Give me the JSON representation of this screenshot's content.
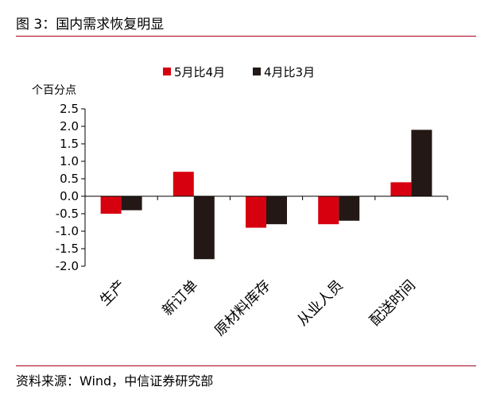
{
  "figure": {
    "title": "图 3：国内需求恢复明显",
    "source": "资料来源：Wind，中信证券研究部"
  },
  "colors": {
    "rule": "#a8001a",
    "series_1": "#d7000f",
    "series_2": "#231815"
  },
  "chart_data": {
    "type": "bar",
    "ylabel": "个百分点",
    "ylim": [
      -2.0,
      2.5
    ],
    "yticks": [
      "2.5",
      "2.0",
      "1.5",
      "1.0",
      "0.5",
      "0.0",
      "-0.5",
      "-1.0",
      "-1.5",
      "-2.0"
    ],
    "categories": [
      "生产",
      "新订单",
      "原材料库存",
      "从业人员",
      "配送时间"
    ],
    "series": [
      {
        "name": "5月比4月",
        "values": [
          -0.5,
          0.7,
          -0.9,
          -0.8,
          0.4
        ]
      },
      {
        "name": "4月比3月",
        "values": [
          -0.4,
          -1.8,
          -0.8,
          -0.7,
          1.9
        ]
      }
    ],
    "legend": "top-center",
    "grid": false
  }
}
